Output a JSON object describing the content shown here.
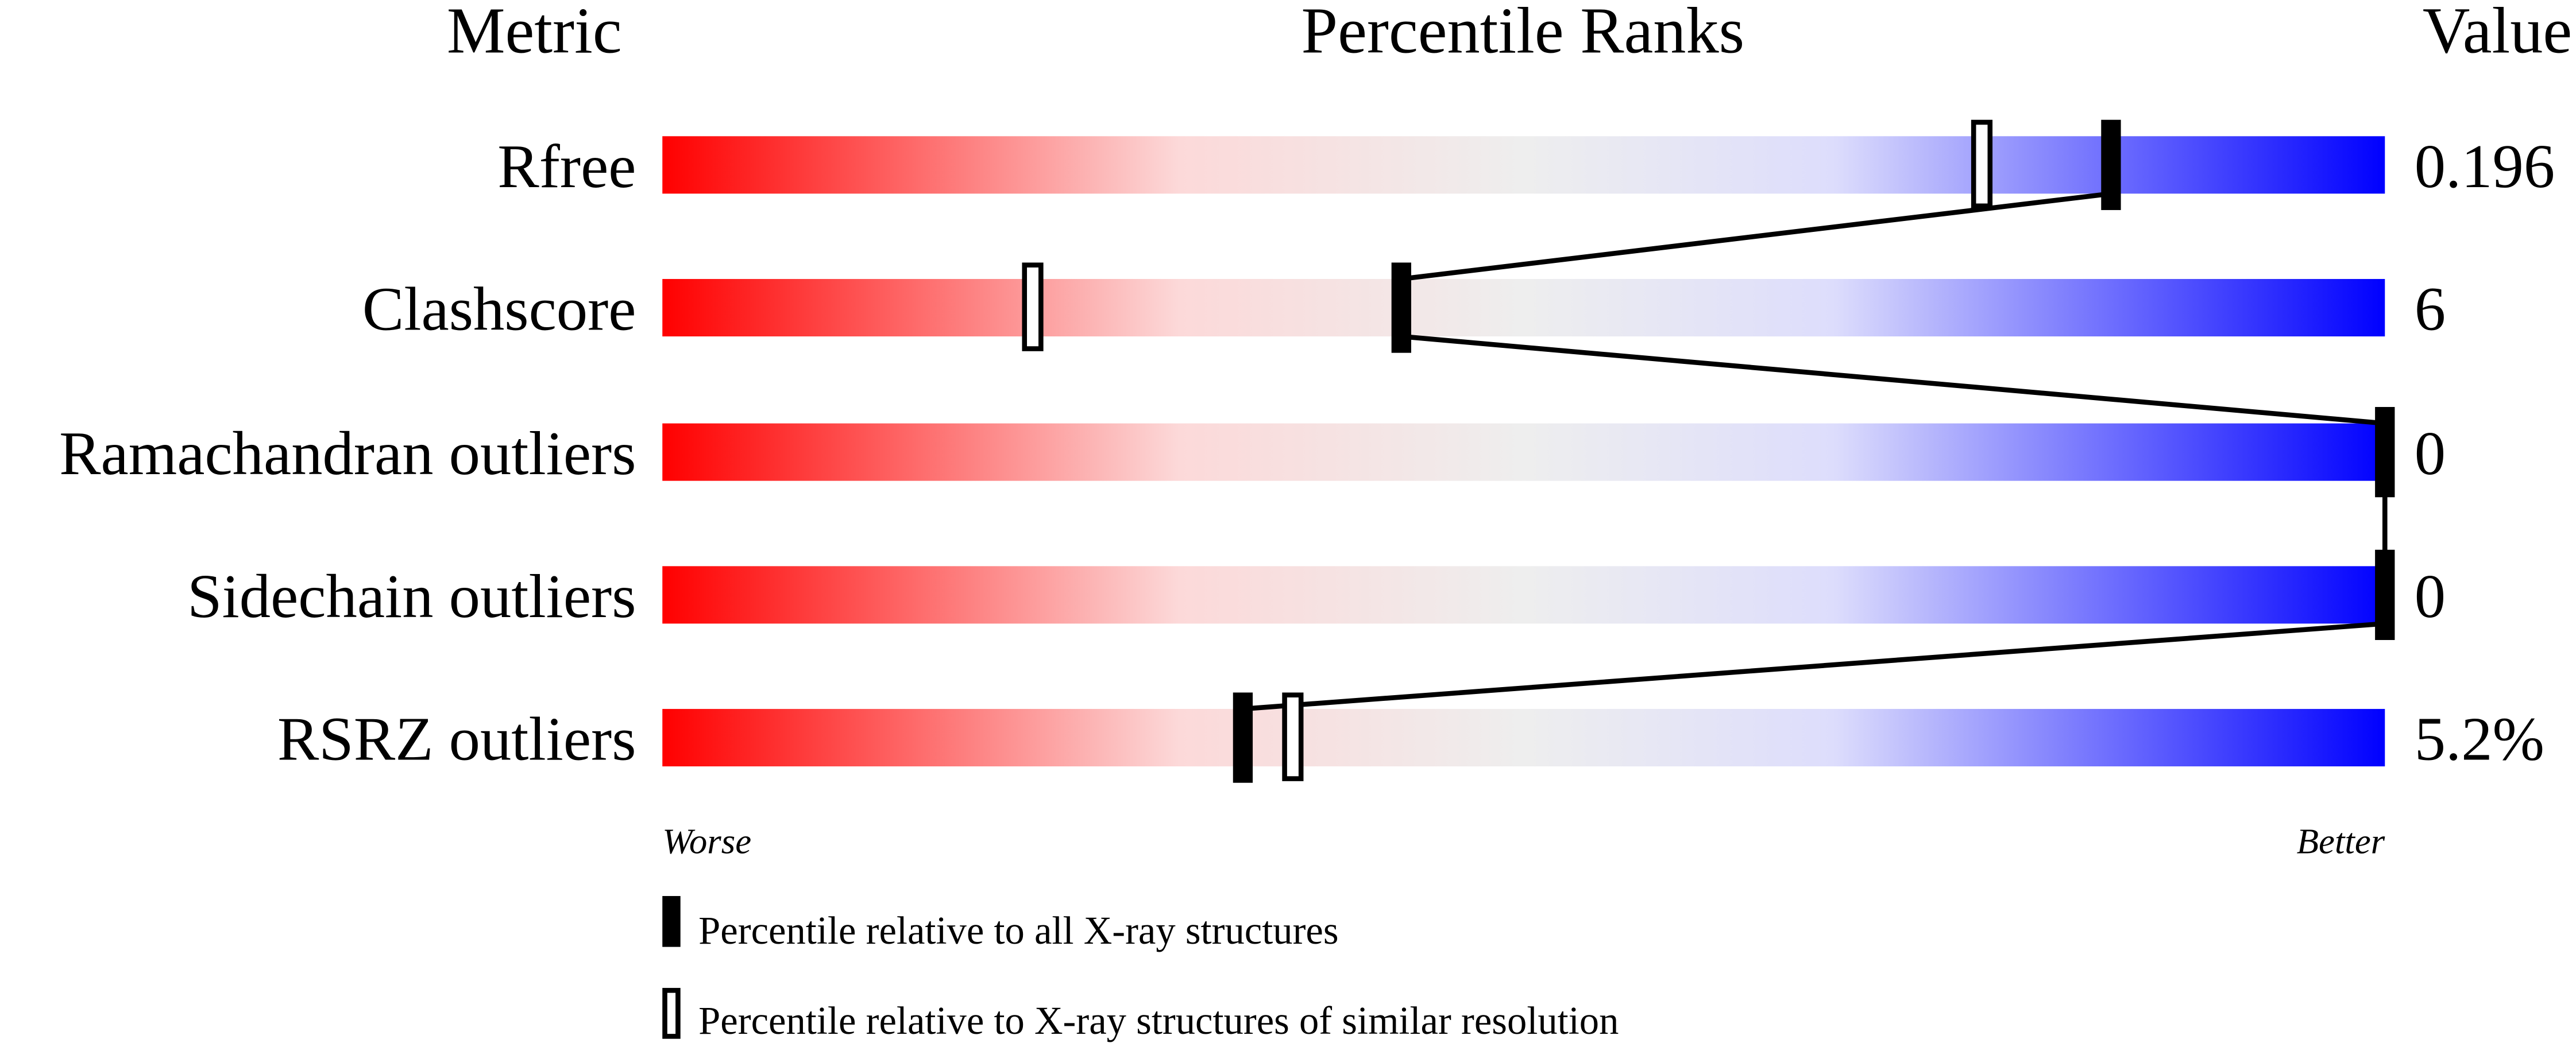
{
  "chart_data": {
    "type": "percentile-slider",
    "headers": {
      "metric": "Metric",
      "ranks": "Percentile Ranks",
      "value": "Value"
    },
    "xlim": [
      0,
      100
    ],
    "axis_labels": {
      "left": "Worse",
      "right": "Better"
    },
    "gradient_colors": [
      "#ff0000",
      "#fcd9d9",
      "#eeeeee",
      "#ddddfc",
      "#0000ff"
    ],
    "rows": [
      {
        "metric": "Rfree",
        "value": "0.196",
        "percentile_all": 84.1,
        "percentile_similar": 76.6
      },
      {
        "metric": "Clashscore",
        "value": "6",
        "percentile_all": 42.9,
        "percentile_similar": 21.5
      },
      {
        "metric": "Ramachandran outliers",
        "value": "0",
        "percentile_all": 100,
        "percentile_similar": null
      },
      {
        "metric": "Sidechain outliers",
        "value": "0",
        "percentile_all": 100,
        "percentile_similar": null
      },
      {
        "metric": "RSRZ outliers",
        "value": "5.2%",
        "percentile_all": 33.7,
        "percentile_similar": 36.6
      }
    ],
    "legend": [
      {
        "marker": "filled",
        "label": "Percentile relative to all X-ray structures"
      },
      {
        "marker": "open",
        "label": "Percentile relative to X-ray structures of similar resolution"
      }
    ]
  }
}
